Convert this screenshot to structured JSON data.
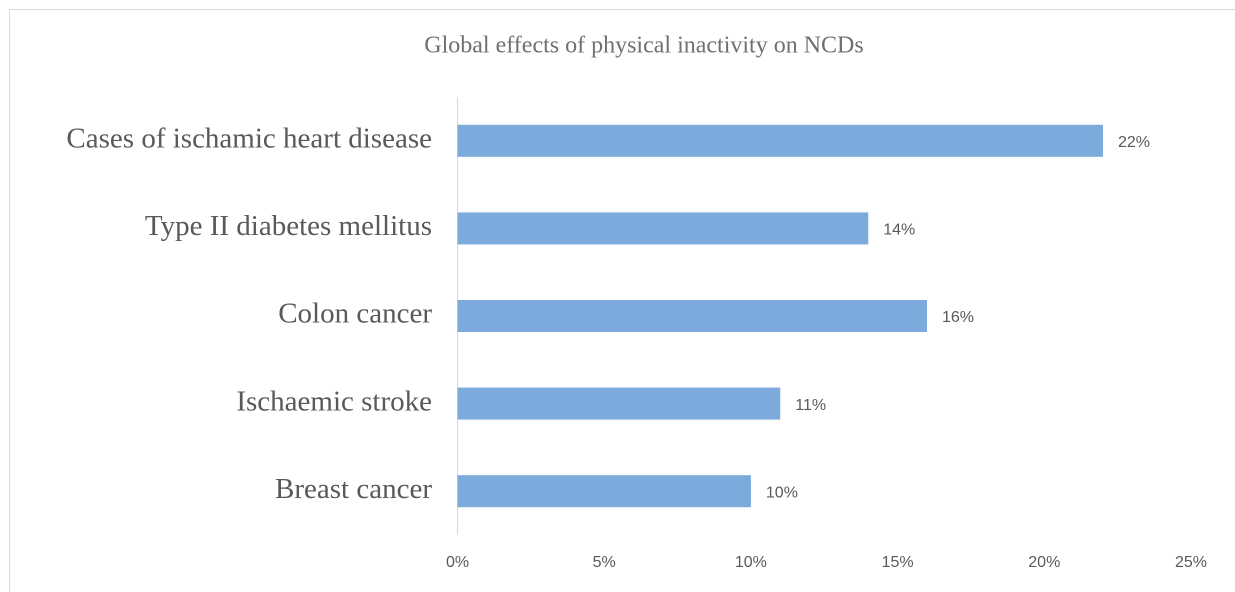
{
  "chart_data": {
    "type": "bar",
    "orientation": "horizontal",
    "title": "Global effects of physical inactivity on NCDs",
    "categories": [
      "Cases of ischamic heart disease",
      "Type II diabetes mellitus",
      "Colon cancer",
      "Ischaemic stroke",
      "Breast cancer"
    ],
    "values": [
      22,
      14,
      16,
      11,
      10
    ],
    "value_labels": [
      "22%",
      "14%",
      "16%",
      "11%",
      "10%"
    ],
    "color": "#7caadc",
    "xlim": [
      0,
      25
    ],
    "xticks": [
      {
        "value": 0,
        "label": "0%"
      },
      {
        "value": 5,
        "label": "5%"
      },
      {
        "value": 10,
        "label": "10%"
      },
      {
        "value": 15,
        "label": "15%"
      },
      {
        "value": 20,
        "label": "20%"
      },
      {
        "value": 25,
        "label": "25%"
      }
    ],
    "grid": false
  }
}
